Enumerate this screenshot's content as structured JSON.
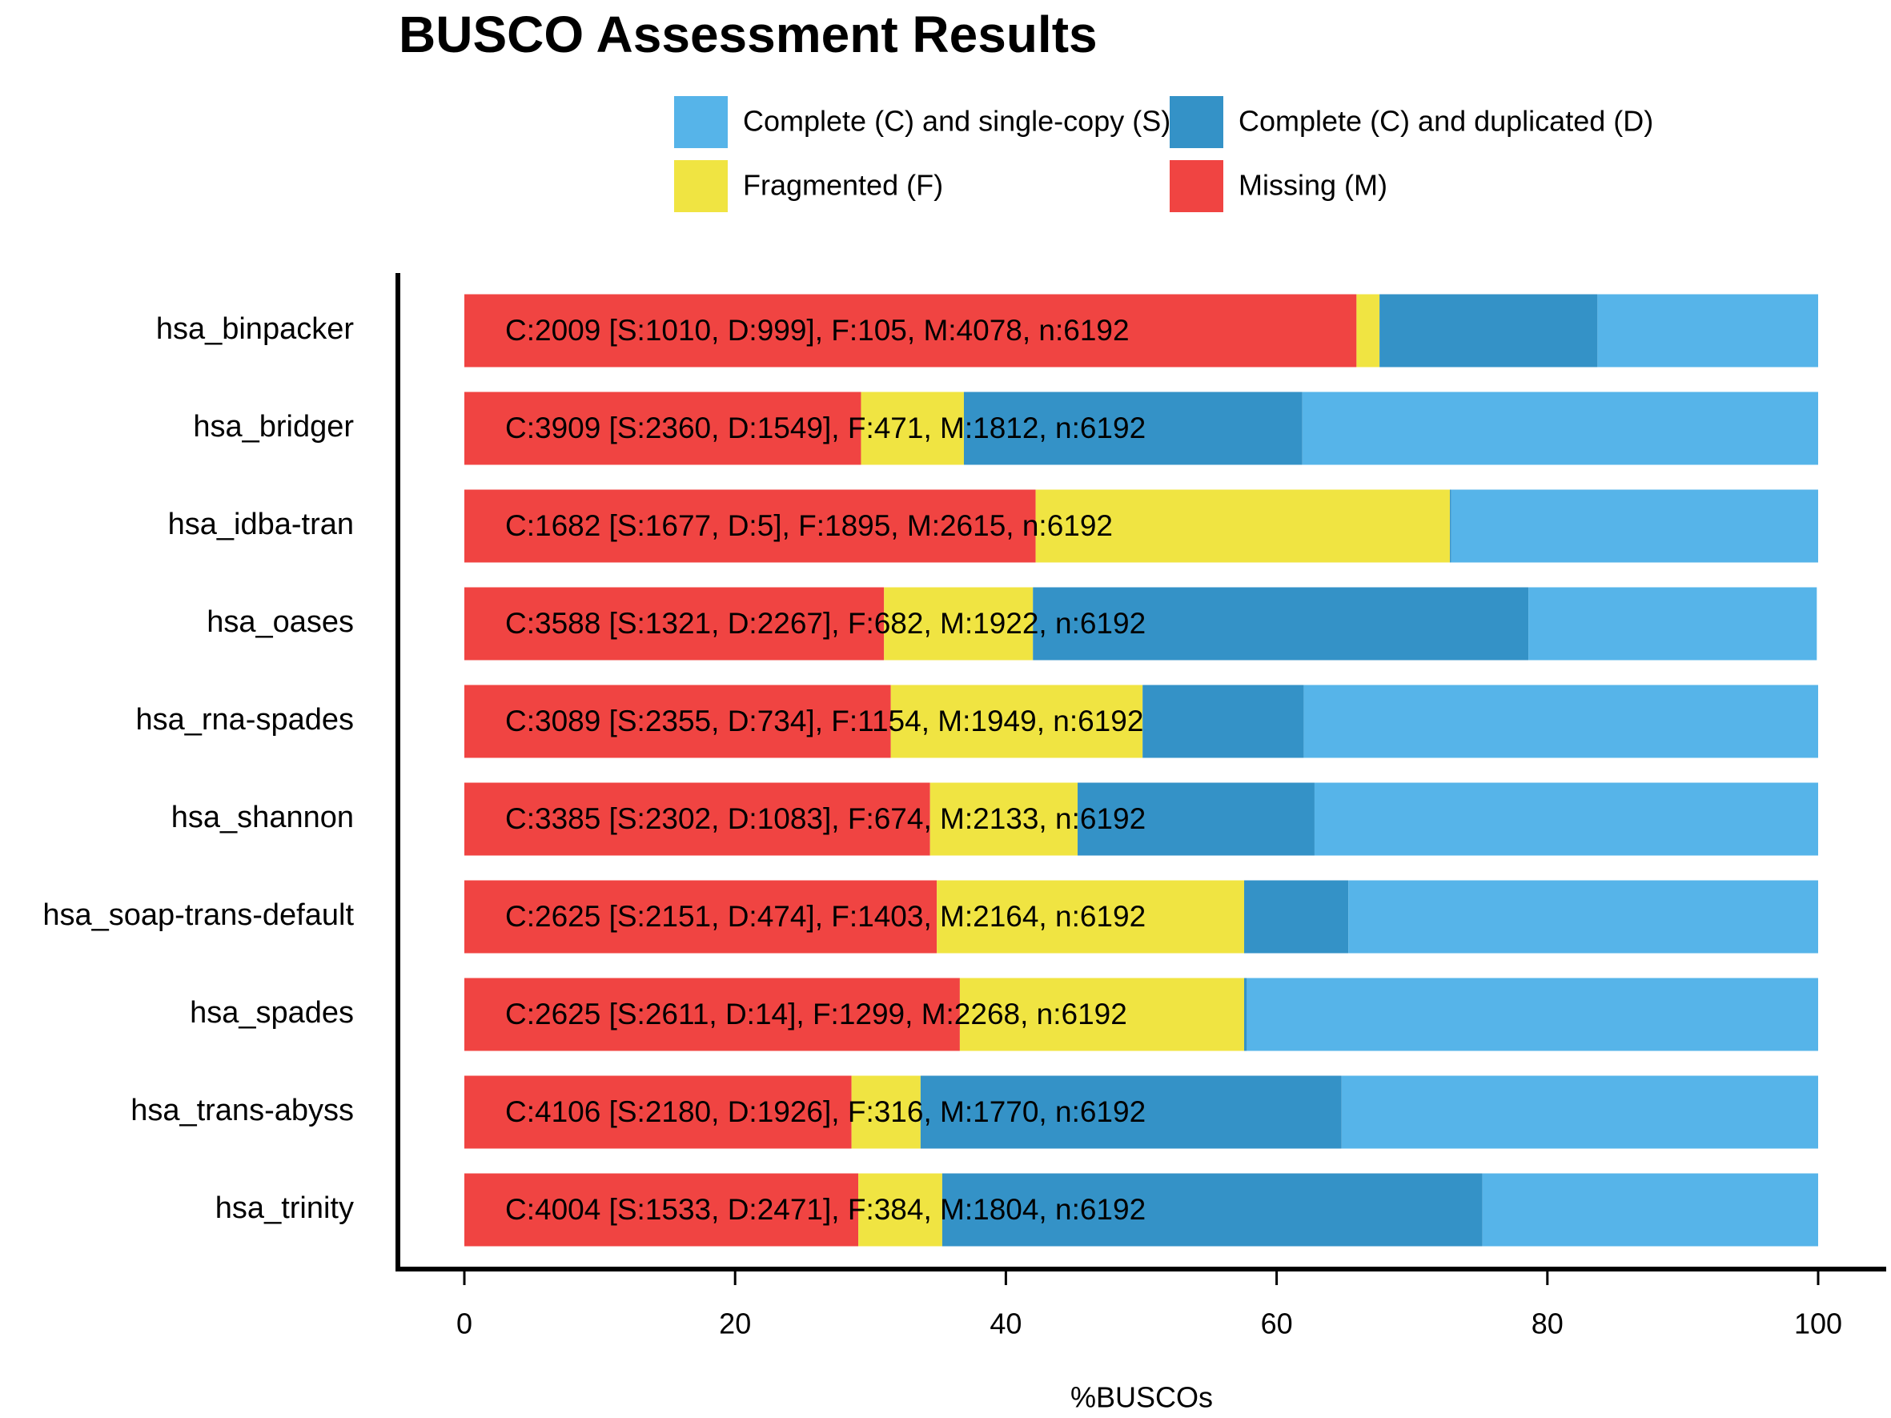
{
  "chart_data": {
    "type": "stacked_bar_horizontal",
    "title": "BUSCO Assessment Results",
    "categories": [
      "hsa_binpacker",
      "hsa_bridger",
      "hsa_idba-tran",
      "hsa_oases",
      "hsa_rna-spades",
      "hsa_shannon",
      "hsa_soap-trans-default",
      "hsa_spades",
      "hsa_trans-abyss",
      "hsa_trinity"
    ],
    "series": [
      {
        "name": "Missing (M)",
        "color": "#F04442",
        "values": [
          65.9,
          29.3,
          42.2,
          31.0,
          31.5,
          34.4,
          34.9,
          36.6,
          28.6,
          29.1
        ]
      },
      {
        "name": "Fragmented (F)",
        "color": "#F0E442",
        "values": [
          1.7,
          7.6,
          30.6,
          11.0,
          18.6,
          10.9,
          22.7,
          21.0,
          5.1,
          6.2
        ]
      },
      {
        "name": "Complete (C) and duplicated (D)",
        "color": "#3492C7",
        "values": [
          16.1,
          25.0,
          0.1,
          36.6,
          11.9,
          17.5,
          7.7,
          0.2,
          31.1,
          39.9
        ]
      },
      {
        "name": "Complete (C) and single-copy (S)",
        "color": "#56B4E9",
        "values": [
          16.3,
          38.1,
          27.1,
          21.3,
          38.0,
          37.2,
          34.7,
          42.2,
          35.2,
          24.8
        ]
      }
    ],
    "bar_labels": [
      "C:2009 [S:1010, D:999], F:105, M:4078, n:6192",
      "C:3909 [S:2360, D:1549], F:471, M:1812, n:6192",
      "C:1682 [S:1677, D:5], F:1895, M:2615, n:6192",
      "C:3588 [S:1321, D:2267], F:682, M:1922, n:6192",
      "C:3089 [S:2355, D:734], F:1154, M:1949, n:6192",
      "C:3385 [S:2302, D:1083], F:674, M:2133, n:6192",
      "C:2625 [S:2151, D:474], F:1403, M:2164, n:6192",
      "C:2625 [S:2611, D:14], F:1299, M:2268, n:6192",
      "C:4106 [S:2180, D:1926], F:316, M:1770, n:6192",
      "C:4004 [S:1533, D:2471], F:384, M:1804, n:6192"
    ],
    "x_label": "%BUSCOs",
    "xlim": [
      0,
      100
    ],
    "xticks": [
      0,
      20,
      40,
      60,
      80,
      100
    ]
  }
}
